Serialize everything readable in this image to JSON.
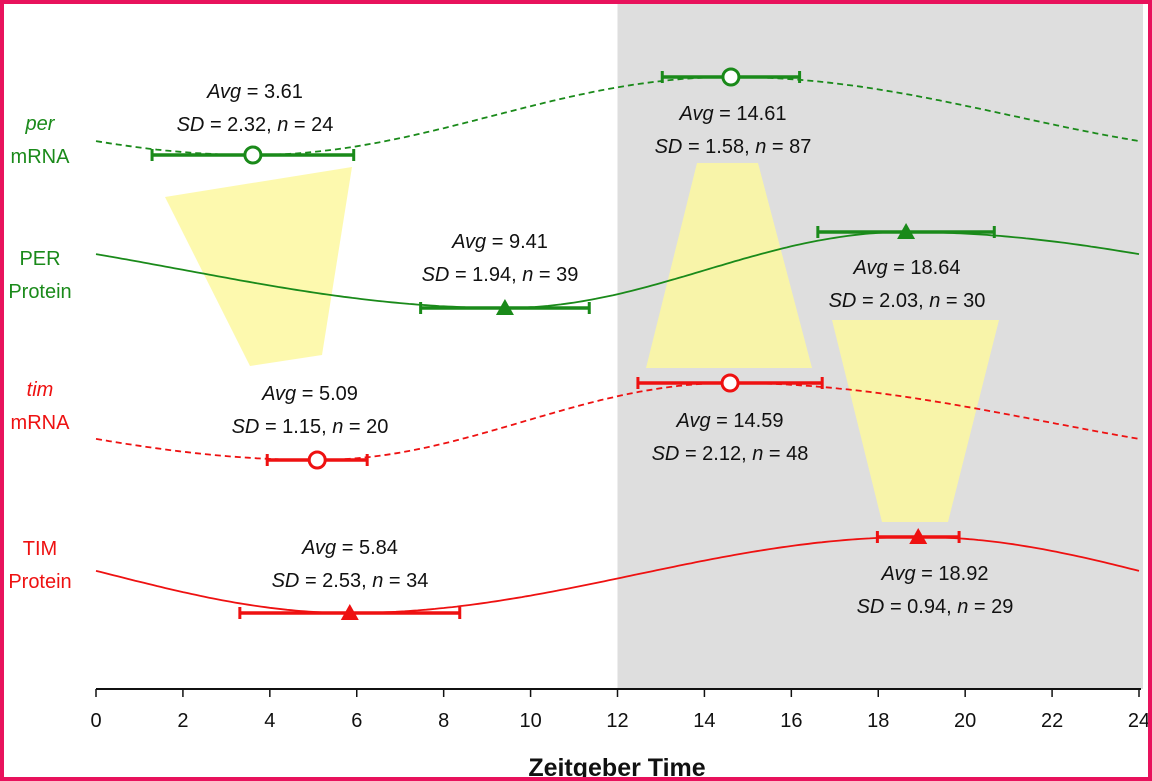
{
  "chart_data": {
    "type": "line",
    "xlabel": "Zeitgeber Time",
    "ylabel": "",
    "xlim": [
      0,
      24
    ],
    "xticks": [
      0,
      2,
      4,
      6,
      8,
      10,
      12,
      14,
      16,
      18,
      20,
      22,
      24
    ],
    "shaded_region": {
      "x": [
        12,
        24
      ],
      "color": "#dedede"
    },
    "stat_labels": {
      "avg": "Avg",
      "sd": "SD",
      "n": "n"
    },
    "series": [
      {
        "name_line1": "per",
        "name_line2": "mRNA",
        "italic_first": true,
        "color": "#1a8a1a",
        "line": "dashed",
        "marker": "open-circle",
        "points": [
          {
            "avg": 3.61,
            "sd": 2.32,
            "n": 24,
            "kind": "trough"
          },
          {
            "avg": 14.61,
            "sd": 1.58,
            "n": 87,
            "kind": "peak"
          }
        ]
      },
      {
        "name_line1": "PER",
        "name_line2": "Protein",
        "italic_first": false,
        "color": "#1a8a1a",
        "line": "solid",
        "marker": "filled-triangle",
        "points": [
          {
            "avg": 9.41,
            "sd": 1.94,
            "n": 39,
            "kind": "trough"
          },
          {
            "avg": 18.64,
            "sd": 2.03,
            "n": 30,
            "kind": "peak"
          }
        ]
      },
      {
        "name_line1": "tim",
        "name_line2": "mRNA",
        "italic_first": true,
        "color": "#ee1111",
        "line": "dashed",
        "marker": "open-circle",
        "points": [
          {
            "avg": 5.09,
            "sd": 1.15,
            "n": 20,
            "kind": "trough"
          },
          {
            "avg": 14.59,
            "sd": 2.12,
            "n": 48,
            "kind": "peak"
          }
        ]
      },
      {
        "name_line1": "TIM",
        "name_line2": "Protein",
        "italic_first": false,
        "color": "#ee1111",
        "line": "solid",
        "marker": "filled-triangle",
        "points": [
          {
            "avg": 5.84,
            "sd": 2.53,
            "n": 34,
            "kind": "trough"
          },
          {
            "avg": 18.92,
            "sd": 0.94,
            "n": 29,
            "kind": "peak"
          }
        ]
      }
    ],
    "highlight_color": "#fdf8a0"
  }
}
